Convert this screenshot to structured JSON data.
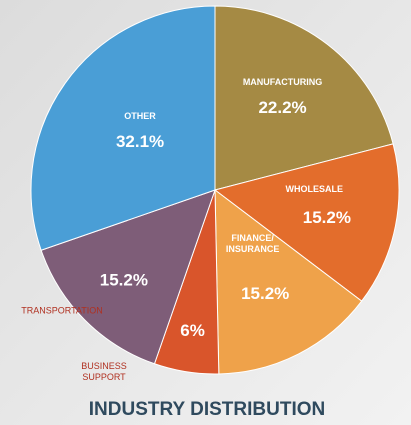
{
  "chart_data": {
    "type": "pie",
    "title": "INDUSTRY DISTRIBUTION",
    "categories": [
      "MANUFACTURING",
      "WHOLESALE",
      "FINANCE/ INSURANCE",
      "BUSINESS SUPPORT",
      "TRANSPORTATION",
      "OTHER"
    ],
    "values": [
      22.2,
      15.2,
      15.2,
      6,
      15.2,
      32.1
    ],
    "value_labels": [
      "22.2%",
      "15.2%",
      "15.2%",
      "6%",
      "15.2%",
      "32.1%"
    ],
    "colors": [
      "#a58a44",
      "#e36d2c",
      "#efa24a",
      "#d9552b",
      "#7e5d78",
      "#4a9ed6"
    ]
  }
}
